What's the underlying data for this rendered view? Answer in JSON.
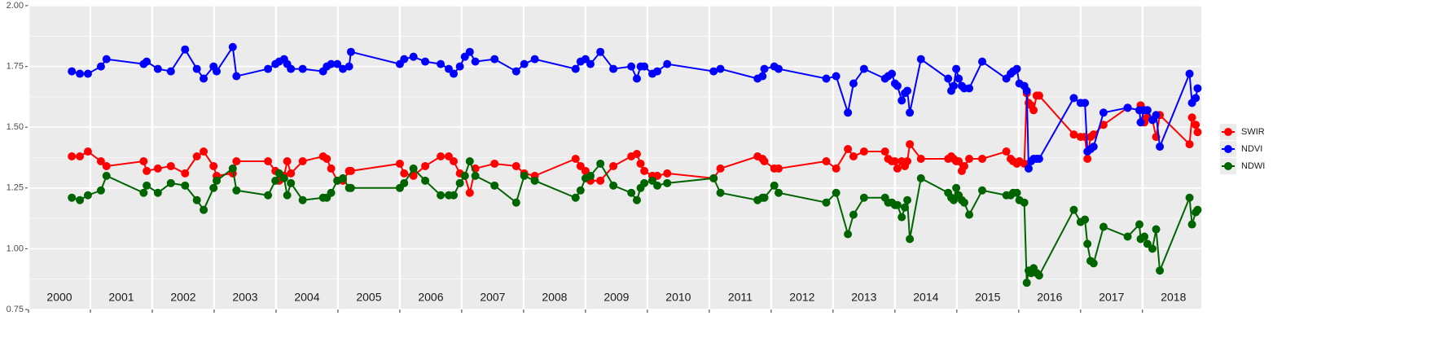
{
  "chart_data": {
    "type": "line",
    "x": [
      2000.7,
      2000.83,
      2000.96,
      2001.17,
      2001.26,
      2001.86,
      2001.91,
      2002.09,
      2002.3,
      2002.53,
      2002.72,
      2002.83,
      2002.99,
      2003.04,
      2003.3,
      2003.36,
      2003.87,
      2003.99,
      2004.05,
      2004.13,
      2004.18,
      2004.24,
      2004.43,
      2004.76,
      2004.82,
      2004.89,
      2004.99,
      2005.08,
      2005.18,
      2005.21,
      2006.0,
      2006.07,
      2006.22,
      2006.41,
      2006.66,
      2006.79,
      2006.87,
      2006.97,
      2007.05,
      2007.13,
      2007.22,
      2007.53,
      2007.88,
      2008.01,
      2008.18,
      2008.84,
      2008.92,
      2009.0,
      2009.08,
      2009.24,
      2009.45,
      2009.74,
      2009.83,
      2009.89,
      2009.95,
      2010.08,
      2010.16,
      2010.32,
      2011.07,
      2011.18,
      2011.78,
      2011.86,
      2011.89,
      2012.05,
      2012.12,
      2012.89,
      2013.05,
      2013.24,
      2013.33,
      2013.5,
      2013.84,
      2013.89,
      2013.95,
      2014.0,
      2014.04,
      2014.11,
      2014.16,
      2014.2,
      2014.24,
      2014.42,
      2014.86,
      2014.91,
      2014.95,
      2014.99,
      2015.03,
      2015.08,
      2015.12,
      2015.2,
      2015.41,
      2015.8,
      2015.87,
      2015.91,
      2015.97,
      2016.01,
      2016.09,
      2016.13,
      2016.16,
      2016.2,
      2016.24,
      2016.29,
      2016.33,
      2016.89,
      2017.0,
      2017.07,
      2017.11,
      2017.16,
      2017.21,
      2017.37,
      2017.76,
      2017.95,
      2017.97,
      2018.03,
      2018.08,
      2018.16,
      2018.22,
      2018.28,
      2018.76,
      2018.8,
      2018.86,
      2018.89
    ],
    "series": [
      {
        "name": "SWIR",
        "color": "#ff0000",
        "values": [
          1.38,
          1.38,
          1.4,
          1.36,
          1.34,
          1.36,
          1.32,
          1.33,
          1.34,
          1.31,
          1.38,
          1.4,
          1.34,
          1.3,
          1.31,
          1.36,
          1.36,
          1.32,
          1.28,
          1.3,
          1.36,
          1.31,
          1.36,
          1.38,
          1.37,
          1.33,
          1.28,
          1.28,
          1.32,
          1.32,
          1.35,
          1.31,
          1.3,
          1.34,
          1.38,
          1.38,
          1.36,
          1.31,
          1.3,
          1.23,
          1.33,
          1.35,
          1.34,
          1.31,
          1.3,
          1.37,
          1.34,
          1.32,
          1.28,
          1.28,
          1.34,
          1.38,
          1.39,
          1.35,
          1.32,
          1.3,
          1.3,
          1.31,
          1.29,
          1.33,
          1.38,
          1.37,
          1.36,
          1.33,
          1.33,
          1.36,
          1.33,
          1.41,
          1.38,
          1.4,
          1.4,
          1.37,
          1.36,
          1.36,
          1.33,
          1.36,
          1.34,
          1.36,
          1.43,
          1.37,
          1.37,
          1.38,
          1.37,
          1.36,
          1.36,
          1.32,
          1.34,
          1.37,
          1.37,
          1.4,
          1.37,
          1.36,
          1.35,
          1.36,
          1.35,
          1.64,
          1.6,
          1.59,
          1.57,
          1.63,
          1.63,
          1.47,
          1.46,
          1.46,
          1.37,
          1.46,
          1.47,
          1.51,
          1.58,
          1.57,
          1.59,
          1.52,
          1.54,
          1.53,
          1.46,
          1.55,
          1.43,
          1.54,
          1.51,
          1.48
        ]
      },
      {
        "name": "NDVI",
        "color": "#0000ff",
        "values": [
          1.73,
          1.72,
          1.72,
          1.75,
          1.78,
          1.76,
          1.77,
          1.74,
          1.73,
          1.82,
          1.74,
          1.7,
          1.75,
          1.73,
          1.83,
          1.71,
          1.74,
          1.76,
          1.77,
          1.78,
          1.76,
          1.74,
          1.74,
          1.73,
          1.75,
          1.76,
          1.76,
          1.74,
          1.75,
          1.81,
          1.76,
          1.78,
          1.79,
          1.77,
          1.76,
          1.74,
          1.72,
          1.75,
          1.79,
          1.81,
          1.77,
          1.78,
          1.73,
          1.76,
          1.78,
          1.74,
          1.77,
          1.78,
          1.76,
          1.81,
          1.74,
          1.75,
          1.7,
          1.75,
          1.75,
          1.72,
          1.73,
          1.76,
          1.73,
          1.74,
          1.7,
          1.71,
          1.74,
          1.75,
          1.74,
          1.7,
          1.71,
          1.56,
          1.68,
          1.74,
          1.7,
          1.71,
          1.72,
          1.68,
          1.67,
          1.61,
          1.64,
          1.65,
          1.56,
          1.78,
          1.7,
          1.65,
          1.67,
          1.74,
          1.7,
          1.67,
          1.66,
          1.66,
          1.77,
          1.7,
          1.72,
          1.73,
          1.74,
          1.68,
          1.67,
          1.65,
          1.33,
          1.36,
          1.37,
          1.37,
          1.37,
          1.62,
          1.6,
          1.6,
          1.4,
          1.41,
          1.42,
          1.56,
          1.58,
          1.57,
          1.52,
          1.57,
          1.57,
          1.53,
          1.55,
          1.42,
          1.72,
          1.6,
          1.62,
          1.66
        ]
      },
      {
        "name": "NDWI",
        "color": "#006400",
        "values": [
          1.21,
          1.2,
          1.22,
          1.24,
          1.3,
          1.23,
          1.26,
          1.23,
          1.27,
          1.26,
          1.2,
          1.16,
          1.25,
          1.28,
          1.33,
          1.24,
          1.22,
          1.28,
          1.31,
          1.29,
          1.22,
          1.27,
          1.2,
          1.21,
          1.21,
          1.23,
          1.28,
          1.29,
          1.25,
          1.25,
          1.25,
          1.27,
          1.33,
          1.28,
          1.22,
          1.22,
          1.22,
          1.27,
          1.3,
          1.36,
          1.3,
          1.26,
          1.19,
          1.3,
          1.28,
          1.21,
          1.24,
          1.29,
          1.3,
          1.35,
          1.26,
          1.23,
          1.2,
          1.25,
          1.27,
          1.28,
          1.26,
          1.27,
          1.29,
          1.23,
          1.2,
          1.21,
          1.21,
          1.26,
          1.23,
          1.19,
          1.23,
          1.06,
          1.14,
          1.21,
          1.21,
          1.19,
          1.19,
          1.18,
          1.18,
          1.13,
          1.17,
          1.2,
          1.04,
          1.29,
          1.23,
          1.21,
          1.2,
          1.25,
          1.22,
          1.2,
          1.19,
          1.14,
          1.24,
          1.22,
          1.22,
          1.23,
          1.23,
          1.2,
          1.19,
          0.86,
          0.91,
          0.9,
          0.92,
          0.9,
          0.89,
          1.16,
          1.11,
          1.12,
          1.02,
          0.95,
          0.94,
          1.09,
          1.05,
          1.1,
          1.04,
          1.05,
          1.02,
          1.0,
          1.08,
          0.91,
          1.21,
          1.1,
          1.15,
          1.16
        ]
      }
    ],
    "xlim": [
      2000,
      2018.95
    ],
    "xticks": [
      {
        "value": 2000,
        "label": "2000"
      },
      {
        "value": 2001,
        "label": "2001"
      },
      {
        "value": 2002,
        "label": "2002"
      },
      {
        "value": 2003,
        "label": "2003"
      },
      {
        "value": 2004,
        "label": "2004"
      },
      {
        "value": 2005,
        "label": "2005"
      },
      {
        "value": 2006,
        "label": "2006"
      },
      {
        "value": 2007,
        "label": "2007"
      },
      {
        "value": 2008,
        "label": "2008"
      },
      {
        "value": 2009,
        "label": "2009"
      },
      {
        "value": 2010,
        "label": "2010"
      },
      {
        "value": 2011,
        "label": "2011"
      },
      {
        "value": 2012,
        "label": "2012"
      },
      {
        "value": 2013,
        "label": "2013"
      },
      {
        "value": 2014,
        "label": "2014"
      },
      {
        "value": 2015,
        "label": "2015"
      },
      {
        "value": 2016,
        "label": "2016"
      },
      {
        "value": 2017,
        "label": "2017"
      },
      {
        "value": 2018,
        "label": "2018"
      }
    ],
    "ylim": [
      0.75,
      2.0
    ],
    "yticks": [
      0.75,
      {
        "value": 1.0,
        "label": "1.00"
      },
      1.25,
      {
        "value": 1.5,
        "label": "1.50"
      },
      1.75,
      {
        "value": 2.0,
        "label": "2.00"
      }
    ],
    "grid": true,
    "legend": "right"
  }
}
